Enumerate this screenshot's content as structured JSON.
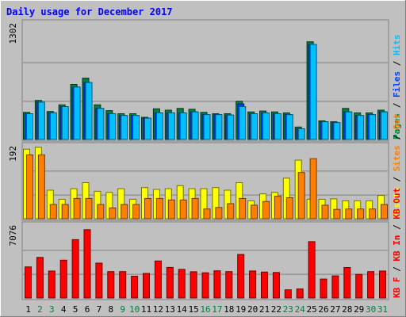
{
  "chart_data": {
    "type": "bar",
    "title": "Daily usage for December 2017",
    "days": [
      1,
      2,
      3,
      4,
      5,
      6,
      7,
      8,
      9,
      10,
      11,
      12,
      13,
      14,
      15,
      16,
      17,
      18,
      19,
      20,
      21,
      22,
      23,
      24,
      25,
      26,
      27,
      28,
      29,
      30,
      31
    ],
    "weekend_days": [
      2,
      3,
      9,
      10,
      16,
      17,
      23,
      24,
      30,
      31
    ],
    "colors": {
      "background": "#c0c0c0",
      "frame": "#808080",
      "title": "#0000ff",
      "hits": "#008040",
      "files": "#0040ff",
      "pages": "#00c0ff",
      "visits": "#ffff00",
      "sites": "#ff8000",
      "kbytes": "#ff0000",
      "weekday_label": "#000000",
      "weekend_label": "#008040"
    },
    "panels": [
      {
        "key": "requests",
        "ymax": 1302,
        "ymax_label": "1302",
        "right_label": [
          "Pages",
          "Files",
          "Hits"
        ],
        "series": [
          {
            "name": "Hits",
            "color_key": "hits",
            "values": [
              305,
              440,
              315,
              390,
              620,
              690,
              390,
              325,
              290,
              290,
              250,
              345,
              330,
              350,
              340,
              305,
              290,
              290,
              430,
              310,
              320,
              310,
              300,
              140,
              1100,
              210,
              200,
              350,
              300,
              300,
              330
            ]
          },
          {
            "name": "Files",
            "color_key": "files",
            "values": [
              290,
              420,
              300,
              370,
              590,
              640,
              350,
              290,
              270,
              270,
              240,
              300,
              300,
              300,
              310,
              280,
              280,
              275,
              400,
              290,
              300,
              290,
              280,
              120,
              1070,
              200,
              190,
              310,
              270,
              280,
              310
            ]
          },
          {
            "name": "Pages",
            "color_key": "pages",
            "values": [
              290,
              420,
              300,
              370,
              590,
              640,
              350,
              290,
              270,
              270,
              240,
              300,
              300,
              300,
              310,
              280,
              280,
              275,
              370,
              290,
              300,
              290,
              280,
              120,
              1070,
              200,
              190,
              310,
              270,
              280,
              310
            ]
          }
        ]
      },
      {
        "key": "visitors",
        "ymax": 192,
        "ymax_label": "192",
        "right_label": [
          "Visits",
          "Sites",
          "Out"
        ],
        "series": [
          {
            "name": "Visits",
            "color_key": "visits",
            "values": [
              185,
              190,
              76,
              52,
              80,
              96,
              73,
              70,
              80,
              52,
              83,
              78,
              80,
              88,
              80,
              80,
              83,
              76,
              96,
              48,
              66,
              70,
              108,
              156,
              52,
              52,
              53,
              48,
              48,
              48,
              62
            ]
          },
          {
            "name": "Sites",
            "color_key": "sites",
            "values": [
              170,
              170,
              38,
              38,
              54,
              54,
              38,
              29,
              38,
              38,
              54,
              54,
              50,
              50,
              54,
              26,
              30,
              40,
              54,
              36,
              46,
              60,
              56,
              123,
              160,
              36,
              25,
              26,
              26,
              26,
              38
            ]
          }
        ]
      },
      {
        "key": "kbytes",
        "ymax": 7076,
        "ymax_label": "7076",
        "right_label": [
          "KB F",
          "KB In",
          "KB Out"
        ],
        "series": [
          {
            "name": "KB F",
            "color_key": "kbytes",
            "values": [
              3050,
              3980,
              2640,
              3710,
              5720,
              6700,
              3420,
              2590,
              2590,
              2140,
              2410,
              3630,
              3000,
              2810,
              2570,
              2470,
              2670,
              2590,
              4270,
              2650,
              2540,
              2500,
              800,
              890,
              5530,
              1860,
              2170,
              2990,
              2320,
              2590,
              2640
            ]
          }
        ]
      }
    ]
  }
}
